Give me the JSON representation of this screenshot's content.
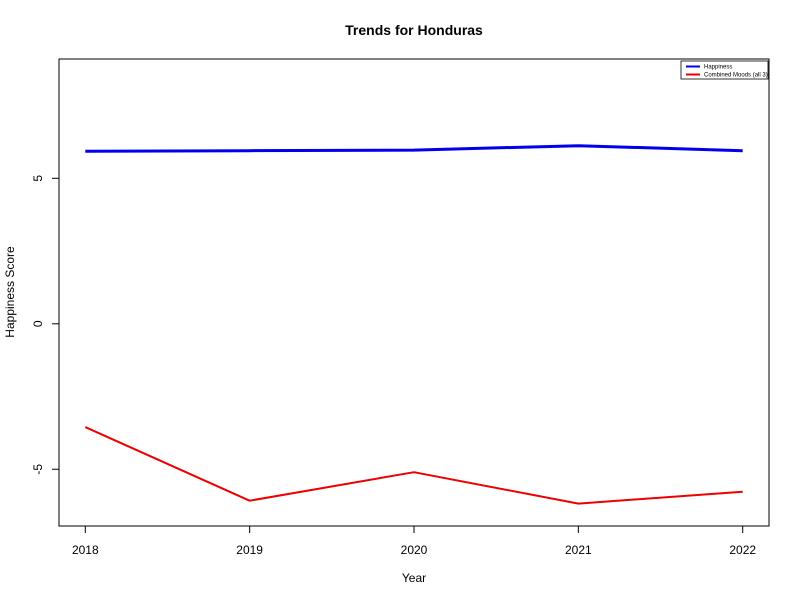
{
  "chart_data": {
    "type": "line",
    "title": "Trends for Honduras",
    "xlabel": "Year",
    "ylabel": "Happiness Score",
    "x": [
      2018,
      2019,
      2020,
      2021,
      2022
    ],
    "x_tick_labels": [
      "2018",
      "2019",
      "2020",
      "2021",
      "2022"
    ],
    "y_ticks": [
      -5,
      0,
      5
    ],
    "y_tick_labels": [
      "-5",
      "0",
      "5"
    ],
    "xlim": [
      2017.84,
      2022.16
    ],
    "ylim": [
      -6.95,
      9.1
    ],
    "grid": false,
    "legend_position": "top-right",
    "series": [
      {
        "name": "Happiness",
        "color": "#0000ee",
        "values": [
          5.93,
          5.95,
          5.97,
          6.12,
          5.95
        ]
      },
      {
        "name": "Combined Moods (all 3)",
        "color": "#ee0000",
        "values": [
          -3.55,
          -6.08,
          -5.1,
          -6.18,
          -5.77
        ]
      }
    ]
  }
}
